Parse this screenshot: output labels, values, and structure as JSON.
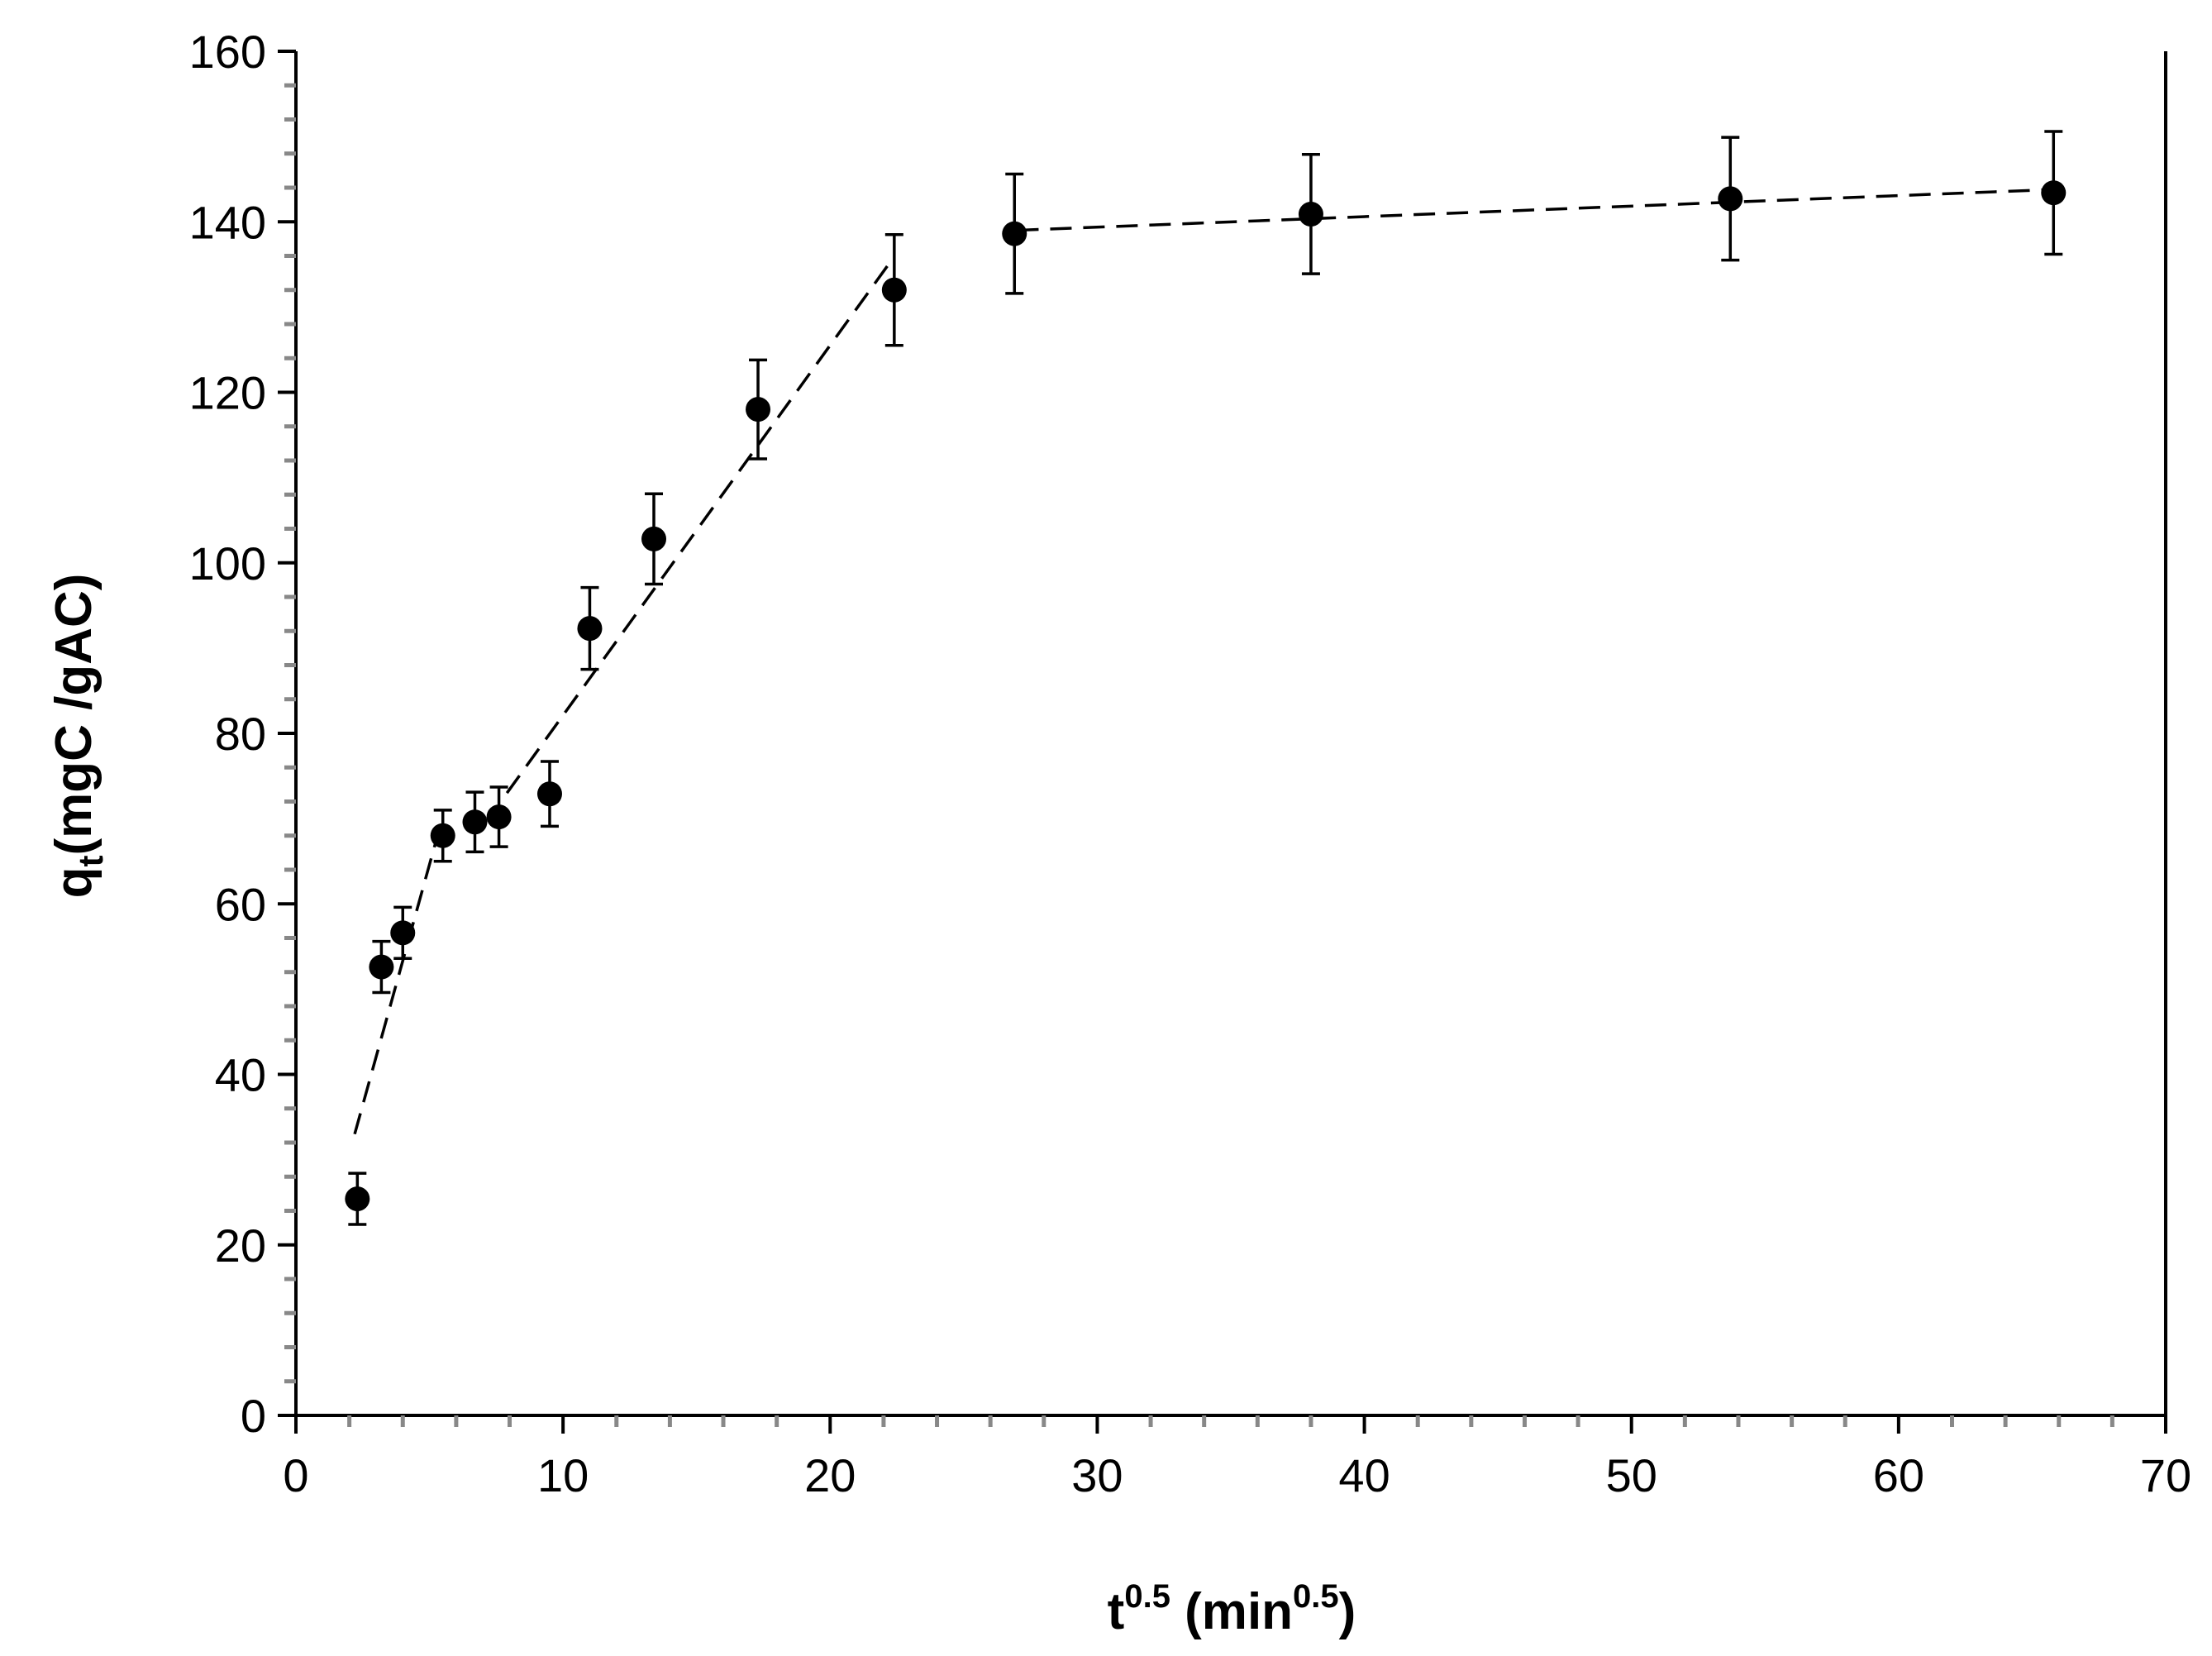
{
  "chart_data": {
    "type": "scatter",
    "title": "",
    "xlabel": {
      "base": "t",
      "sup": "0.5",
      "unit_open": " (min",
      "unit_sup": "0.5",
      "unit_close": ")"
    },
    "ylabel": {
      "base": "q",
      "sub": "t",
      "rest": "(mgC /gAC)"
    },
    "xlim": [
      0,
      70
    ],
    "ylim": [
      0,
      160
    ],
    "x_ticks": [
      "0",
      "10",
      "20",
      "30",
      "40",
      "50",
      "60",
      "70"
    ],
    "y_ticks": [
      "0",
      "20",
      "40",
      "60",
      "80",
      "100",
      "120",
      "140",
      "160"
    ],
    "x_tick_values": [
      0,
      10,
      20,
      30,
      40,
      50,
      60,
      70
    ],
    "y_tick_values": [
      0,
      20,
      40,
      60,
      80,
      100,
      120,
      140,
      160
    ],
    "grid": false,
    "legend": "none",
    "series": [
      {
        "x": [
          2.3,
          3.2,
          4.0,
          5.5,
          6.7,
          7.6,
          9.5,
          11.0,
          13.4,
          17.3,
          22.4,
          26.9,
          38.0,
          53.7,
          65.8
        ],
        "y": [
          25.4,
          52.6,
          56.6,
          68.0,
          69.6,
          70.2,
          72.9,
          92.3,
          102.8,
          118.0,
          132.0,
          138.6,
          140.9,
          142.7,
          143.4
        ],
        "err": [
          3.0,
          3.0,
          3.0,
          3.0,
          3.5,
          3.5,
          3.8,
          4.8,
          5.3,
          5.8,
          6.5,
          7.0,
          7.0,
          7.2,
          7.2
        ]
      }
    ],
    "fit_lines": [
      {
        "x": [
          2.2,
          5.3
        ],
        "y": [
          33,
          68
        ]
      },
      {
        "x": [
          7.9,
          22.3
        ],
        "y": [
          73,
          135.5
        ]
      },
      {
        "x": [
          27.0,
          65.9
        ],
        "y": [
          139,
          143.8
        ]
      }
    ],
    "colors": {
      "marker": "#000000",
      "errorbar": "#000000",
      "fit": "#000000",
      "axis": "#000000",
      "minor_tick": "#888888"
    }
  }
}
